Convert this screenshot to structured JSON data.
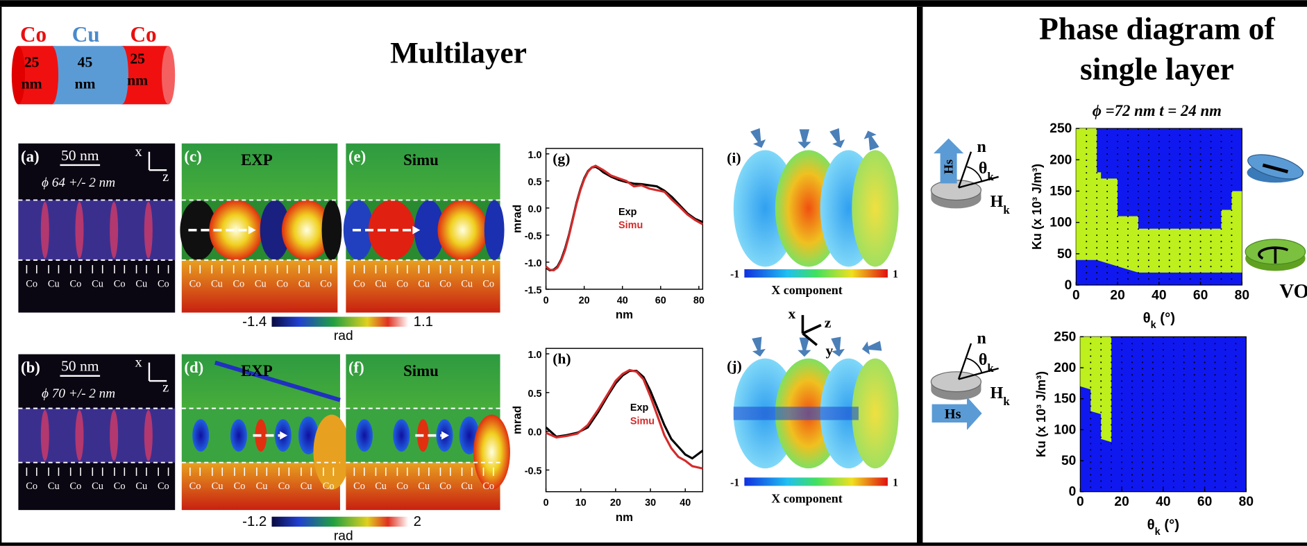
{
  "header": {
    "title": "Multilayer",
    "phase_title": [
      "Phase diagram of",
      "single layer"
    ]
  },
  "cylinder": {
    "materials": [
      "Co",
      "Cu",
      "Co"
    ],
    "thicknesses": [
      "25",
      "45",
      "25"
    ],
    "unit": "nm"
  },
  "images": [
    {
      "label": "(a)",
      "scale": "50 nm",
      "axes": [
        "x",
        "z"
      ],
      "diameter": "ϕ 64 +/- 2 nm"
    },
    {
      "label": "(c)",
      "title": "EXP"
    },
    {
      "label": "(e)",
      "title": "Simu"
    },
    {
      "label": "(b)",
      "scale": "50 nm",
      "axes": [
        "x",
        "z"
      ],
      "diameter": "ϕ 70 +/- 2 nm"
    },
    {
      "label": "(d)",
      "title": "EXP"
    },
    {
      "label": "(f)",
      "title": "Simu"
    }
  ],
  "layer_labels": [
    "Co",
    "Cu",
    "Co",
    "Cu",
    "Co",
    "Cu",
    "Co"
  ],
  "colorbars": [
    {
      "min": "-1.4",
      "max": "1.1",
      "unit": "rad"
    },
    {
      "min": "-1.2",
      "max": "2",
      "unit": "rad"
    }
  ],
  "plots": [
    {
      "label": "(g)",
      "xlabel": "nm",
      "ylabel": "mrad",
      "x": [
        0,
        2,
        4,
        6,
        8,
        10,
        12,
        14,
        16,
        18,
        20,
        22,
        24,
        26,
        28,
        30,
        34,
        38,
        42,
        46,
        50,
        54,
        58,
        62,
        66,
        70,
        74,
        78,
        82
      ],
      "series": [
        {
          "name": "Exp",
          "color": "#000000",
          "values": [
            -1.1,
            -1.15,
            -1.14,
            -1.08,
            -0.95,
            -0.75,
            -0.5,
            -0.2,
            0.1,
            0.35,
            0.55,
            0.68,
            0.75,
            0.76,
            0.72,
            0.66,
            0.58,
            0.52,
            0.48,
            0.45,
            0.44,
            0.42,
            0.4,
            0.32,
            0.2,
            0.05,
            -0.1,
            -0.2,
            -0.26
          ]
        },
        {
          "name": "Simu",
          "color": "#d42a2a",
          "values": [
            -1.08,
            -1.14,
            -1.15,
            -1.1,
            -0.97,
            -0.78,
            -0.52,
            -0.22,
            0.08,
            0.33,
            0.53,
            0.67,
            0.75,
            0.78,
            0.74,
            0.7,
            0.6,
            0.55,
            0.5,
            0.4,
            0.42,
            0.36,
            0.33,
            0.3,
            0.15,
            0.02,
            -0.12,
            -0.22,
            -0.3
          ]
        }
      ],
      "xlim": [
        0,
        82
      ],
      "ylim": [
        -1.5,
        1.1
      ],
      "xticks": [
        0,
        20,
        40,
        60,
        80
      ],
      "yticks": [
        {
          "value": 1,
          "label": "1.0"
        },
        {
          "value": 0.5,
          "label": "0.5"
        },
        {
          "value": 0,
          "label": "0.0"
        },
        {
          "value": -0.5,
          "label": "-0.5"
        },
        {
          "value": -1,
          "label": "-1.0"
        },
        {
          "value": -1.5,
          "label": "-1.5"
        }
      ]
    },
    {
      "label": "(h)",
      "xlabel": "nm",
      "ylabel": "mrad",
      "x": [
        0,
        3,
        6,
        9,
        12,
        15,
        18,
        20,
        22,
        24,
        26,
        28,
        30,
        32,
        34,
        36,
        38,
        40,
        42,
        45
      ],
      "series": [
        {
          "name": "Exp",
          "color": "#000000",
          "values": [
            0.05,
            -0.07,
            -0.05,
            -0.02,
            0.05,
            0.25,
            0.48,
            0.62,
            0.72,
            0.78,
            0.78,
            0.7,
            0.52,
            0.3,
            0.08,
            -0.1,
            -0.2,
            -0.3,
            -0.35,
            -0.25
          ]
        },
        {
          "name": "Simu",
          "color": "#d42a2a",
          "values": [
            -0.02,
            -0.08,
            -0.06,
            -0.03,
            0.08,
            0.28,
            0.5,
            0.65,
            0.74,
            0.79,
            0.77,
            0.67,
            0.45,
            0.2,
            -0.05,
            -0.22,
            -0.33,
            -0.38,
            -0.45,
            -0.48
          ]
        }
      ],
      "xlim": [
        0,
        45
      ],
      "ylim": [
        -0.78,
        1.07
      ],
      "xticks": [
        0,
        10,
        20,
        30,
        40
      ],
      "yticks": [
        {
          "value": 1,
          "label": "1.0"
        },
        {
          "value": 0.5,
          "label": "0.5"
        },
        {
          "value": 0,
          "label": "0.0"
        },
        {
          "value": -0.5,
          "label": "-0.5"
        }
      ]
    }
  ],
  "spin_maps": [
    {
      "label": "(i)",
      "min": "-1",
      "max": "1",
      "caption": "X component"
    },
    {
      "label": "(j)",
      "min": "-1",
      "max": "1",
      "caption": "X component"
    }
  ],
  "triad": [
    "x",
    "z",
    "y"
  ],
  "phase": {
    "subtitle": "ϕ =72 nm t = 24 nm",
    "ylabel": "Ku (x 10³ J/m³)",
    "xlabel": {
      "symbol": "θ",
      "sub": "k",
      "unit": " (°)"
    },
    "vop": "VOP",
    "n": "n",
    "hk": {
      "symbol": "H",
      "sub": "k"
    },
    "hs": "Hs",
    "panels": [
      {
        "xlim": [
          0,
          80
        ],
        "ylim": [
          0,
          250
        ],
        "xticks": [
          0,
          20,
          40,
          60,
          80
        ],
        "yticks": [
          0,
          50,
          100,
          150,
          200,
          250
        ],
        "vop_region": {
          "x": [
            0,
            10,
            10,
            12,
            12,
            20,
            20,
            30,
            30,
            70,
            70,
            75,
            75,
            80
          ],
          "upper": [
            250,
            250,
            180,
            180,
            170,
            170,
            110,
            110,
            90,
            90,
            120,
            120,
            150,
            150
          ],
          "lower": [
            40,
            40,
            40,
            38,
            38,
            30,
            30,
            20,
            20,
            20,
            20,
            20,
            20,
            20
          ]
        }
      },
      {
        "xlim": [
          0,
          80
        ],
        "ylim": [
          0,
          250
        ],
        "xticks": [
          0,
          20,
          40,
          60,
          80
        ],
        "yticks": [
          0,
          50,
          100,
          150,
          200,
          250
        ],
        "vop_region": {
          "x": [
            0,
            5,
            5,
            10,
            10,
            15
          ],
          "upper": [
            250,
            250,
            250,
            250,
            250,
            250
          ],
          "lower": [
            170,
            165,
            130,
            125,
            85,
            80
          ]
        }
      }
    ]
  }
}
